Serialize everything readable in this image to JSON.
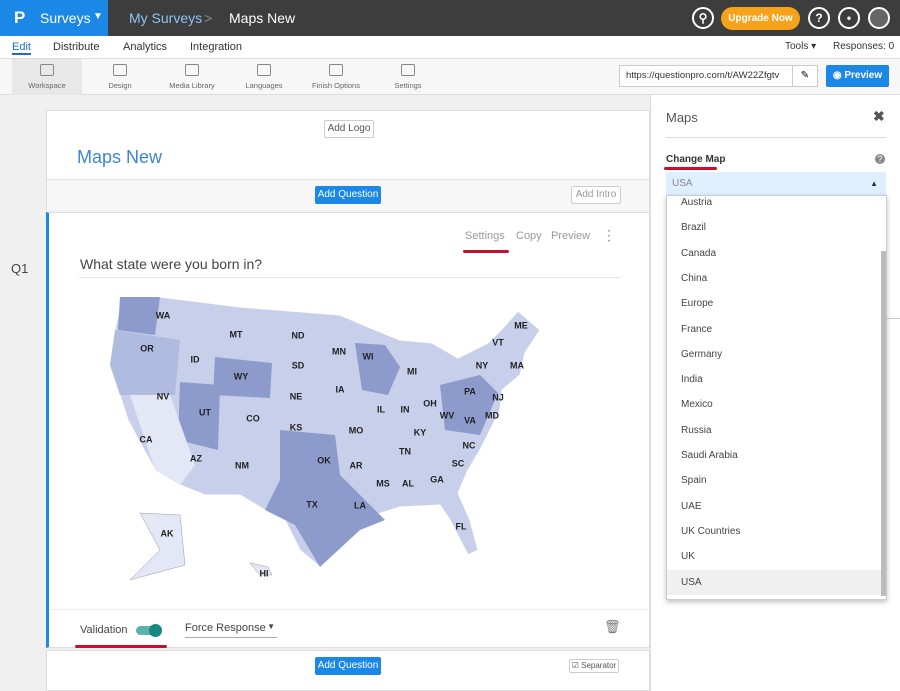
{
  "top_bar": {
    "logo": "P",
    "brand": "Surveys",
    "breadcrumb": [
      "My Surveys",
      "Maps New"
    ],
    "upgrade": "Upgrade Now"
  },
  "nav": {
    "tabs": [
      "Edit",
      "Distribute",
      "Analytics",
      "Integration"
    ],
    "tools": "Tools",
    "responses": "Responses: 0"
  },
  "toolbar": {
    "items": [
      "Workspace",
      "Design",
      "Media Library",
      "Languages",
      "Finish Options",
      "Settings"
    ],
    "url": "https://questionpro.com/t/AW22Zfgtv",
    "preview": "Preview"
  },
  "survey": {
    "add_logo": "Add Logo",
    "title": "Maps New",
    "add_question": "Add Question",
    "add_intro": "Add Intro",
    "question_number": "Q1",
    "question_actions": [
      "Settings",
      "Copy",
      "Preview"
    ],
    "question_text": "What state were you born in?",
    "map_labels": [
      "WA",
      "MT",
      "ND",
      "MN",
      "WI",
      "MI",
      "ME",
      "VT",
      "NY",
      "MA",
      "OR",
      "ID",
      "SD",
      "WY",
      "NE",
      "IA",
      "IL",
      "IN",
      "OH",
      "PA",
      "NJ",
      "NV",
      "UT",
      "CO",
      "KS",
      "MO",
      "KY",
      "WV",
      "VA",
      "MD",
      "CA",
      "AZ",
      "NM",
      "OK",
      "AR",
      "TN",
      "NC",
      "SC",
      "MS",
      "AL",
      "GA",
      "TX",
      "LA",
      "FL",
      "AK",
      "HI"
    ],
    "validation": "Validation",
    "force_response": "Force Response",
    "add_question_bottom": "Add Question",
    "separator": "Separator"
  },
  "panel": {
    "title": "Maps",
    "field_label": "Change Map",
    "selected": "USA",
    "options": [
      "Austria",
      "Brazil",
      "Canada",
      "China",
      "Europe",
      "France",
      "Germany",
      "India",
      "Mexico",
      "Russia",
      "Saudi Arabia",
      "Spain",
      "UAE",
      "UK Countries",
      "UK",
      "USA"
    ]
  }
}
